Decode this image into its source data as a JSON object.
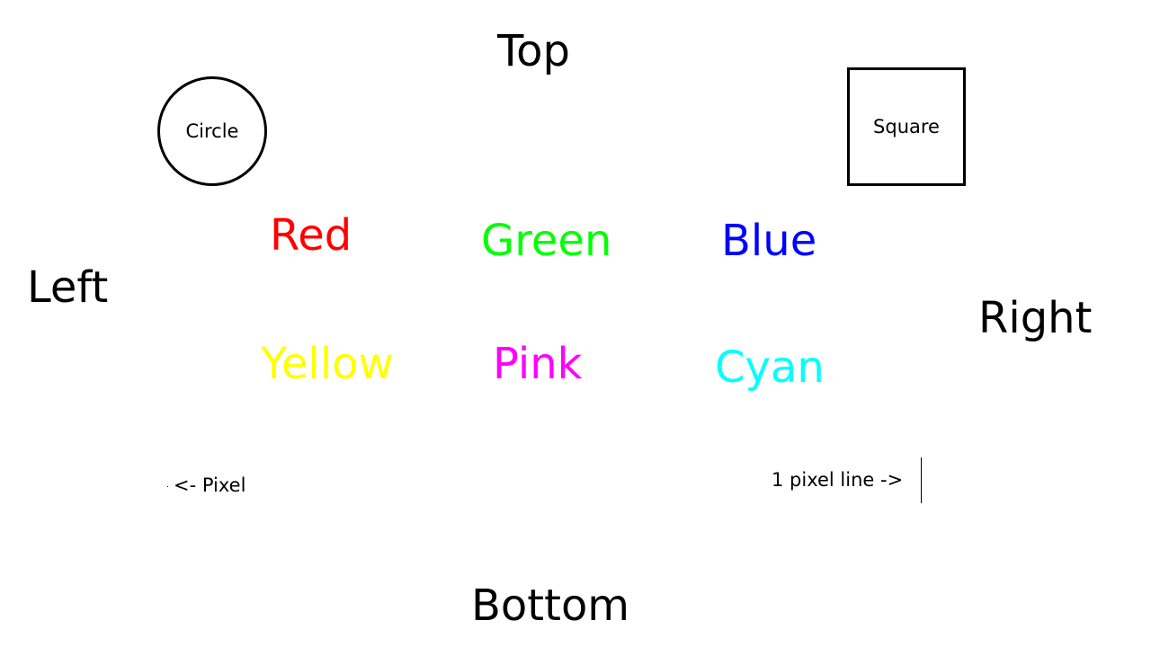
{
  "labels": {
    "top": "Top",
    "left": "Left",
    "right": "Right",
    "bottom": "Bottom"
  },
  "shapes": {
    "circle": "Circle",
    "square": "Square"
  },
  "color_words": {
    "red": {
      "text": "Red",
      "color": "#ff0000"
    },
    "green": {
      "text": "Green",
      "color": "#00ff00"
    },
    "blue": {
      "text": "Blue",
      "color": "#0000ff"
    },
    "yellow": {
      "text": "Yellow",
      "color": "#ffff00"
    },
    "pink": {
      "text": "Pink",
      "color": "#ff00ff"
    },
    "cyan": {
      "text": "Cyan",
      "color": "#00ffff"
    }
  },
  "markers": {
    "pixel_label": "<- Pixel",
    "pixel_line_label": "1 pixel line ->"
  }
}
